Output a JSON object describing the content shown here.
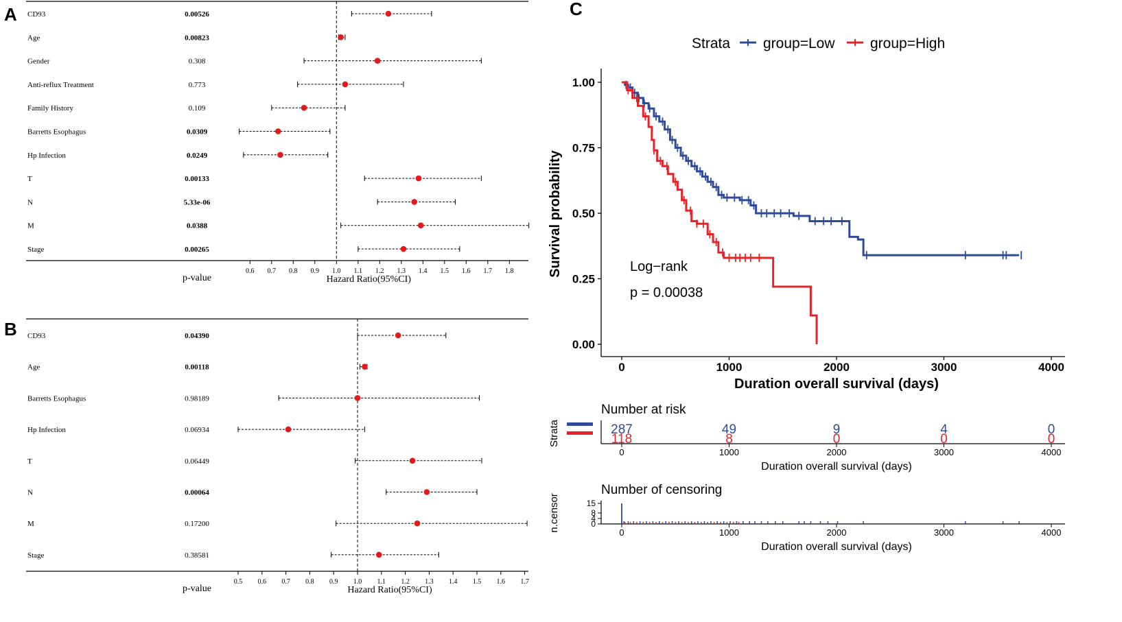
{
  "colors": {
    "point": "#e31a1c",
    "low": "#2e4a9a",
    "high": "#e3242b",
    "axis": "#000000"
  },
  "panels": {
    "a": "A",
    "b": "B",
    "c": "C"
  },
  "chart_data": [
    {
      "type": "forest",
      "panel": "A",
      "xlabel": "Hazard Ratio(95%CI)",
      "pvalue_header": "p-value",
      "reference_line": 1.0,
      "xlim": [
        0.5,
        1.9
      ],
      "xticks": [
        "0.6",
        "0.7",
        "0.8",
        "0.9",
        "1.0",
        "1.1",
        "1.2",
        "1.3",
        "1.4",
        "1.5",
        "1.6",
        "1.7",
        "1.8"
      ],
      "rows": [
        {
          "label": "CD93",
          "p": "0.00526",
          "sig": true,
          "hr": 1.24,
          "lo": 1.07,
          "hi": 1.44
        },
        {
          "label": "Age",
          "p": "0.00823",
          "sig": true,
          "hr": 1.02,
          "lo": 1.01,
          "hi": 1.04
        },
        {
          "label": "Gender",
          "p": "0.308",
          "sig": false,
          "hr": 1.19,
          "lo": 0.85,
          "hi": 1.67
        },
        {
          "label": "Anti-reflux Treatment",
          "p": "0.773",
          "sig": false,
          "hr": 1.04,
          "lo": 0.82,
          "hi": 1.31
        },
        {
          "label": "Family History",
          "p": "0.109",
          "sig": false,
          "hr": 0.85,
          "lo": 0.7,
          "hi": 1.04
        },
        {
          "label": "Barretts Esophagus",
          "p": "0.0309",
          "sig": true,
          "hr": 0.73,
          "lo": 0.55,
          "hi": 0.97
        },
        {
          "label": "Hp Infection",
          "p": "0.0249",
          "sig": true,
          "hr": 0.74,
          "lo": 0.57,
          "hi": 0.96
        },
        {
          "label": "T",
          "p": "0.00133",
          "sig": true,
          "hr": 1.38,
          "lo": 1.13,
          "hi": 1.67
        },
        {
          "label": "N",
          "p": "5.33e-06",
          "sig": true,
          "hr": 1.36,
          "lo": 1.19,
          "hi": 1.55
        },
        {
          "label": "M",
          "p": "0.0388",
          "sig": true,
          "hr": 1.39,
          "lo": 1.02,
          "hi": 1.89
        },
        {
          "label": "Stage",
          "p": "0.00265",
          "sig": true,
          "hr": 1.31,
          "lo": 1.1,
          "hi": 1.57
        }
      ]
    },
    {
      "type": "forest",
      "panel": "B",
      "xlabel": "Hazard Ratio(95%CI)",
      "pvalue_header": "p-value",
      "reference_line": 1.0,
      "xlim": [
        0.5,
        1.7
      ],
      "xticks": [
        "0.5",
        "0.6",
        "0.7",
        "0.8",
        "0.9",
        "1.0",
        "1.1",
        "1.2",
        "1.3",
        "1.4",
        "1.5",
        "1.6",
        "1.7"
      ],
      "rows": [
        {
          "label": "CD93",
          "p": "0.04390",
          "sig": true,
          "hr": 1.17,
          "lo": 1.0,
          "hi": 1.37
        },
        {
          "label": "Age",
          "p": "0.00118",
          "sig": true,
          "hr": 1.03,
          "lo": 1.01,
          "hi": 1.04
        },
        {
          "label": "Barretts Esophagus",
          "p": "0.98189",
          "sig": false,
          "hr": 1.0,
          "lo": 0.67,
          "hi": 1.51
        },
        {
          "label": "Hp Infection",
          "p": "0.06934",
          "sig": false,
          "hr": 0.71,
          "lo": 0.5,
          "hi": 1.03
        },
        {
          "label": "T",
          "p": "0.06449",
          "sig": false,
          "hr": 1.23,
          "lo": 0.99,
          "hi": 1.52
        },
        {
          "label": "N",
          "p": "0.00064",
          "sig": true,
          "hr": 1.29,
          "lo": 1.12,
          "hi": 1.5
        },
        {
          "label": "M",
          "p": "0.17200",
          "sig": false,
          "hr": 1.25,
          "lo": 0.91,
          "hi": 1.71
        },
        {
          "label": "Stage",
          "p": "0.38581",
          "sig": false,
          "hr": 1.09,
          "lo": 0.89,
          "hi": 1.34
        }
      ]
    },
    {
      "type": "line",
      "subtype": "kaplan-meier",
      "panel": "C",
      "legend_title": "Strata",
      "xlabel": "Duration overall survival (days)",
      "ylabel": "Survival probability",
      "xlim": [
        0,
        4000
      ],
      "ylim": [
        0,
        1
      ],
      "xticks": [
        "0",
        "1000",
        "2000",
        "3000",
        "4000"
      ],
      "yticks": [
        "0.00",
        "0.25",
        "0.50",
        "0.75",
        "1.00"
      ],
      "annotation": [
        "Log−rank",
        "p = 0.00038"
      ],
      "series": [
        {
          "name": "group=Low",
          "color_key": "low",
          "points": [
            [
              0,
              1.0
            ],
            [
              30,
              0.99
            ],
            [
              60,
              0.98
            ],
            [
              100,
              0.96
            ],
            [
              150,
              0.94
            ],
            [
              200,
              0.92
            ],
            [
              250,
              0.9
            ],
            [
              300,
              0.87
            ],
            [
              350,
              0.85
            ],
            [
              400,
              0.82
            ],
            [
              450,
              0.78
            ],
            [
              500,
              0.75
            ],
            [
              550,
              0.72
            ],
            [
              600,
              0.7
            ],
            [
              650,
              0.68
            ],
            [
              700,
              0.66
            ],
            [
              750,
              0.64
            ],
            [
              800,
              0.62
            ],
            [
              850,
              0.6
            ],
            [
              900,
              0.57
            ],
            [
              950,
              0.56
            ],
            [
              1000,
              0.56
            ],
            [
              1100,
              0.55
            ],
            [
              1200,
              0.53
            ],
            [
              1250,
              0.5
            ],
            [
              1400,
              0.5
            ],
            [
              1600,
              0.49
            ],
            [
              1700,
              0.49
            ],
            [
              1750,
              0.47
            ],
            [
              2100,
              0.47
            ],
            [
              2120,
              0.41
            ],
            [
              2200,
              0.4
            ],
            [
              2250,
              0.34
            ],
            [
              3700,
              0.34
            ]
          ],
          "censor_x": [
            40,
            80,
            120,
            160,
            210,
            260,
            320,
            380,
            430,
            470,
            520,
            570,
            620,
            680,
            730,
            780,
            830,
            880,
            930,
            980,
            1050,
            1120,
            1180,
            1230,
            1300,
            1350,
            1420,
            1480,
            1560,
            1650,
            1800,
            1880,
            1950,
            2050,
            2280,
            3200,
            3550,
            3580,
            3720
          ]
        },
        {
          "name": "group=High",
          "color_key": "high",
          "points": [
            [
              0,
              1.0
            ],
            [
              50,
              0.97
            ],
            [
              100,
              0.94
            ],
            [
              150,
              0.91
            ],
            [
              200,
              0.87
            ],
            [
              250,
              0.83
            ],
            [
              280,
              0.78
            ],
            [
              300,
              0.74
            ],
            [
              330,
              0.7
            ],
            [
              380,
              0.68
            ],
            [
              430,
              0.65
            ],
            [
              480,
              0.62
            ],
            [
              520,
              0.59
            ],
            [
              560,
              0.55
            ],
            [
              600,
              0.51
            ],
            [
              650,
              0.47
            ],
            [
              700,
              0.46
            ],
            [
              800,
              0.42
            ],
            [
              850,
              0.39
            ],
            [
              900,
              0.35
            ],
            [
              950,
              0.33
            ],
            [
              1400,
              0.33
            ],
            [
              1410,
              0.22
            ],
            [
              1750,
              0.22
            ],
            [
              1760,
              0.11
            ],
            [
              1810,
              0.11
            ],
            [
              1815,
              0.0
            ]
          ],
          "censor_x": [
            60,
            140,
            220,
            300,
            360,
            420,
            500,
            580,
            640,
            700,
            760,
            820,
            880,
            940,
            1000,
            1060,
            1100,
            1150,
            1200,
            1280
          ]
        }
      ]
    },
    {
      "type": "table",
      "panel": "C-risk",
      "title": "Number at risk",
      "ylabel": "Strata",
      "xlabel": "Duration overall survival (days)",
      "xticks": [
        "0",
        "1000",
        "2000",
        "3000",
        "4000"
      ],
      "rows": [
        {
          "name": "group=Low",
          "color_key": "low",
          "values": [
            "287",
            "49",
            "9",
            "4",
            "0"
          ]
        },
        {
          "name": "group=High",
          "color_key": "high",
          "values": [
            "118",
            "8",
            "0",
            "0",
            "0"
          ]
        }
      ]
    },
    {
      "type": "bar",
      "panel": "C-censor",
      "title": "Number of censoring",
      "ylabel": "n.censor",
      "xlabel": "Duration overall survival (days)",
      "xticks": [
        "0",
        "1000",
        "2000",
        "3000",
        "4000"
      ],
      "yticks": [
        "0",
        "4",
        "8",
        "15"
      ],
      "ylim": [
        0,
        15
      ],
      "peak": {
        "x": 0,
        "n": 15,
        "color_key": "low"
      },
      "low_x": [
        20,
        60,
        110,
        170,
        230,
        290,
        350,
        410,
        470,
        530,
        590,
        650,
        710,
        770,
        830,
        890,
        950,
        1010,
        1070,
        1130,
        1190,
        1240,
        1300,
        1360,
        1430,
        1500,
        1650,
        1700,
        1760,
        1850,
        1920,
        2010,
        2250,
        3200,
        3550,
        3700
      ],
      "high_x": [
        30,
        80,
        140,
        200,
        260,
        320,
        380,
        440,
        500,
        560,
        620,
        680,
        740,
        800,
        860,
        920,
        980,
        1040,
        1090
      ]
    }
  ]
}
